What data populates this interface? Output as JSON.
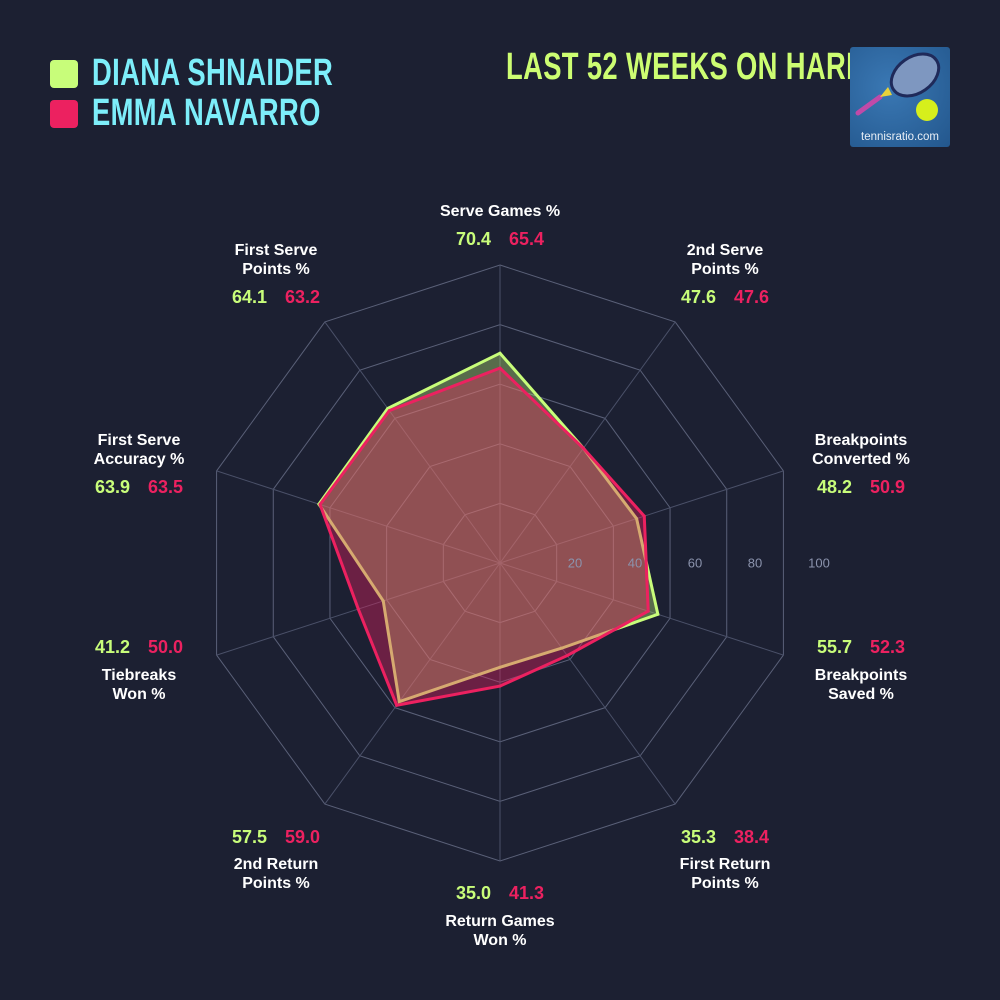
{
  "header": {
    "title": "LAST 52 WEEKS ON HARD",
    "logo_text": "tennisratio.com"
  },
  "chart_data": {
    "type": "radar",
    "range": [
      0,
      100
    ],
    "ring_ticks": [
      "20",
      "40",
      "60",
      "80",
      "100"
    ],
    "axes": [
      {
        "label": [
          "Serve Games %"
        ]
      },
      {
        "label": [
          "2nd Serve",
          "Points %"
        ]
      },
      {
        "label": [
          "Breakpoints",
          "Converted %"
        ]
      },
      {
        "label": [
          "Breakpoints",
          "Saved %"
        ]
      },
      {
        "label": [
          "First Return",
          "Points %"
        ]
      },
      {
        "label": [
          "Return Games",
          "Won %"
        ]
      },
      {
        "label": [
          "2nd Return",
          "Points %"
        ]
      },
      {
        "label": [
          "Tiebreaks",
          "Won %"
        ]
      },
      {
        "label": [
          "First Serve",
          "Accuracy %"
        ]
      },
      {
        "label": [
          "First Serve",
          "Points %"
        ]
      }
    ],
    "series": [
      {
        "name": "DIANA SHNAIDER",
        "color": "#c8fd7a",
        "values": [
          70.4,
          47.6,
          48.2,
          55.7,
          35.3,
          35.0,
          57.5,
          41.2,
          63.9,
          64.1
        ],
        "labels": [
          "70.4",
          "47.6",
          "48.2",
          "55.7",
          "35.3",
          "35.0",
          "57.5",
          "41.2",
          "63.9",
          "64.1"
        ]
      },
      {
        "name": "EMMA NAVARRO",
        "color": "#ec2160",
        "values": [
          65.4,
          47.6,
          50.9,
          52.3,
          38.4,
          41.3,
          59.0,
          50.0,
          63.5,
          63.2
        ],
        "labels": [
          "65.4",
          "47.6",
          "50.9",
          "52.3",
          "38.4",
          "41.3",
          "59.0",
          "50.0",
          "63.5",
          "63.2"
        ]
      }
    ]
  }
}
